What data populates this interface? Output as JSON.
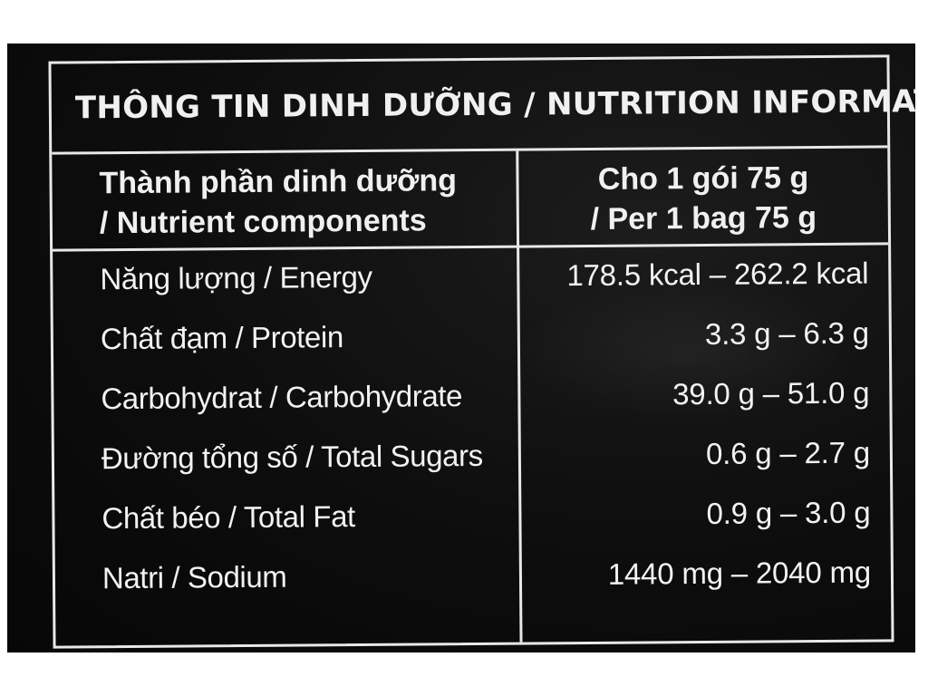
{
  "title": "THÔNG TIN DINH DƯỠNG / NUTRITION INFORMATION",
  "header": {
    "left_line1": "Thành phần dinh dưỡng",
    "left_line2": "/ Nutrient components",
    "right_line1": "Cho 1 gói 75 g",
    "right_line2": "/ Per 1 bag 75 g"
  },
  "rows": [
    {
      "name": "Năng lượng / Energy",
      "value": "178.5 kcal – 262.2 kcal"
    },
    {
      "name": "Chất đạm / Protein",
      "value": "3.3 g – 6.3 g"
    },
    {
      "name": "Carbohydrat / Carbohydrate",
      "value": "39.0 g – 51.0 g"
    },
    {
      "name": "Đường tổng số / Total Sugars",
      "value": "0.6 g – 2.7 g"
    },
    {
      "name": "Chất béo / Total Fat",
      "value": "0.9 g – 3.0 g"
    },
    {
      "name": "Natri / Sodium",
      "value": "1440 mg – 2040 mg"
    }
  ]
}
